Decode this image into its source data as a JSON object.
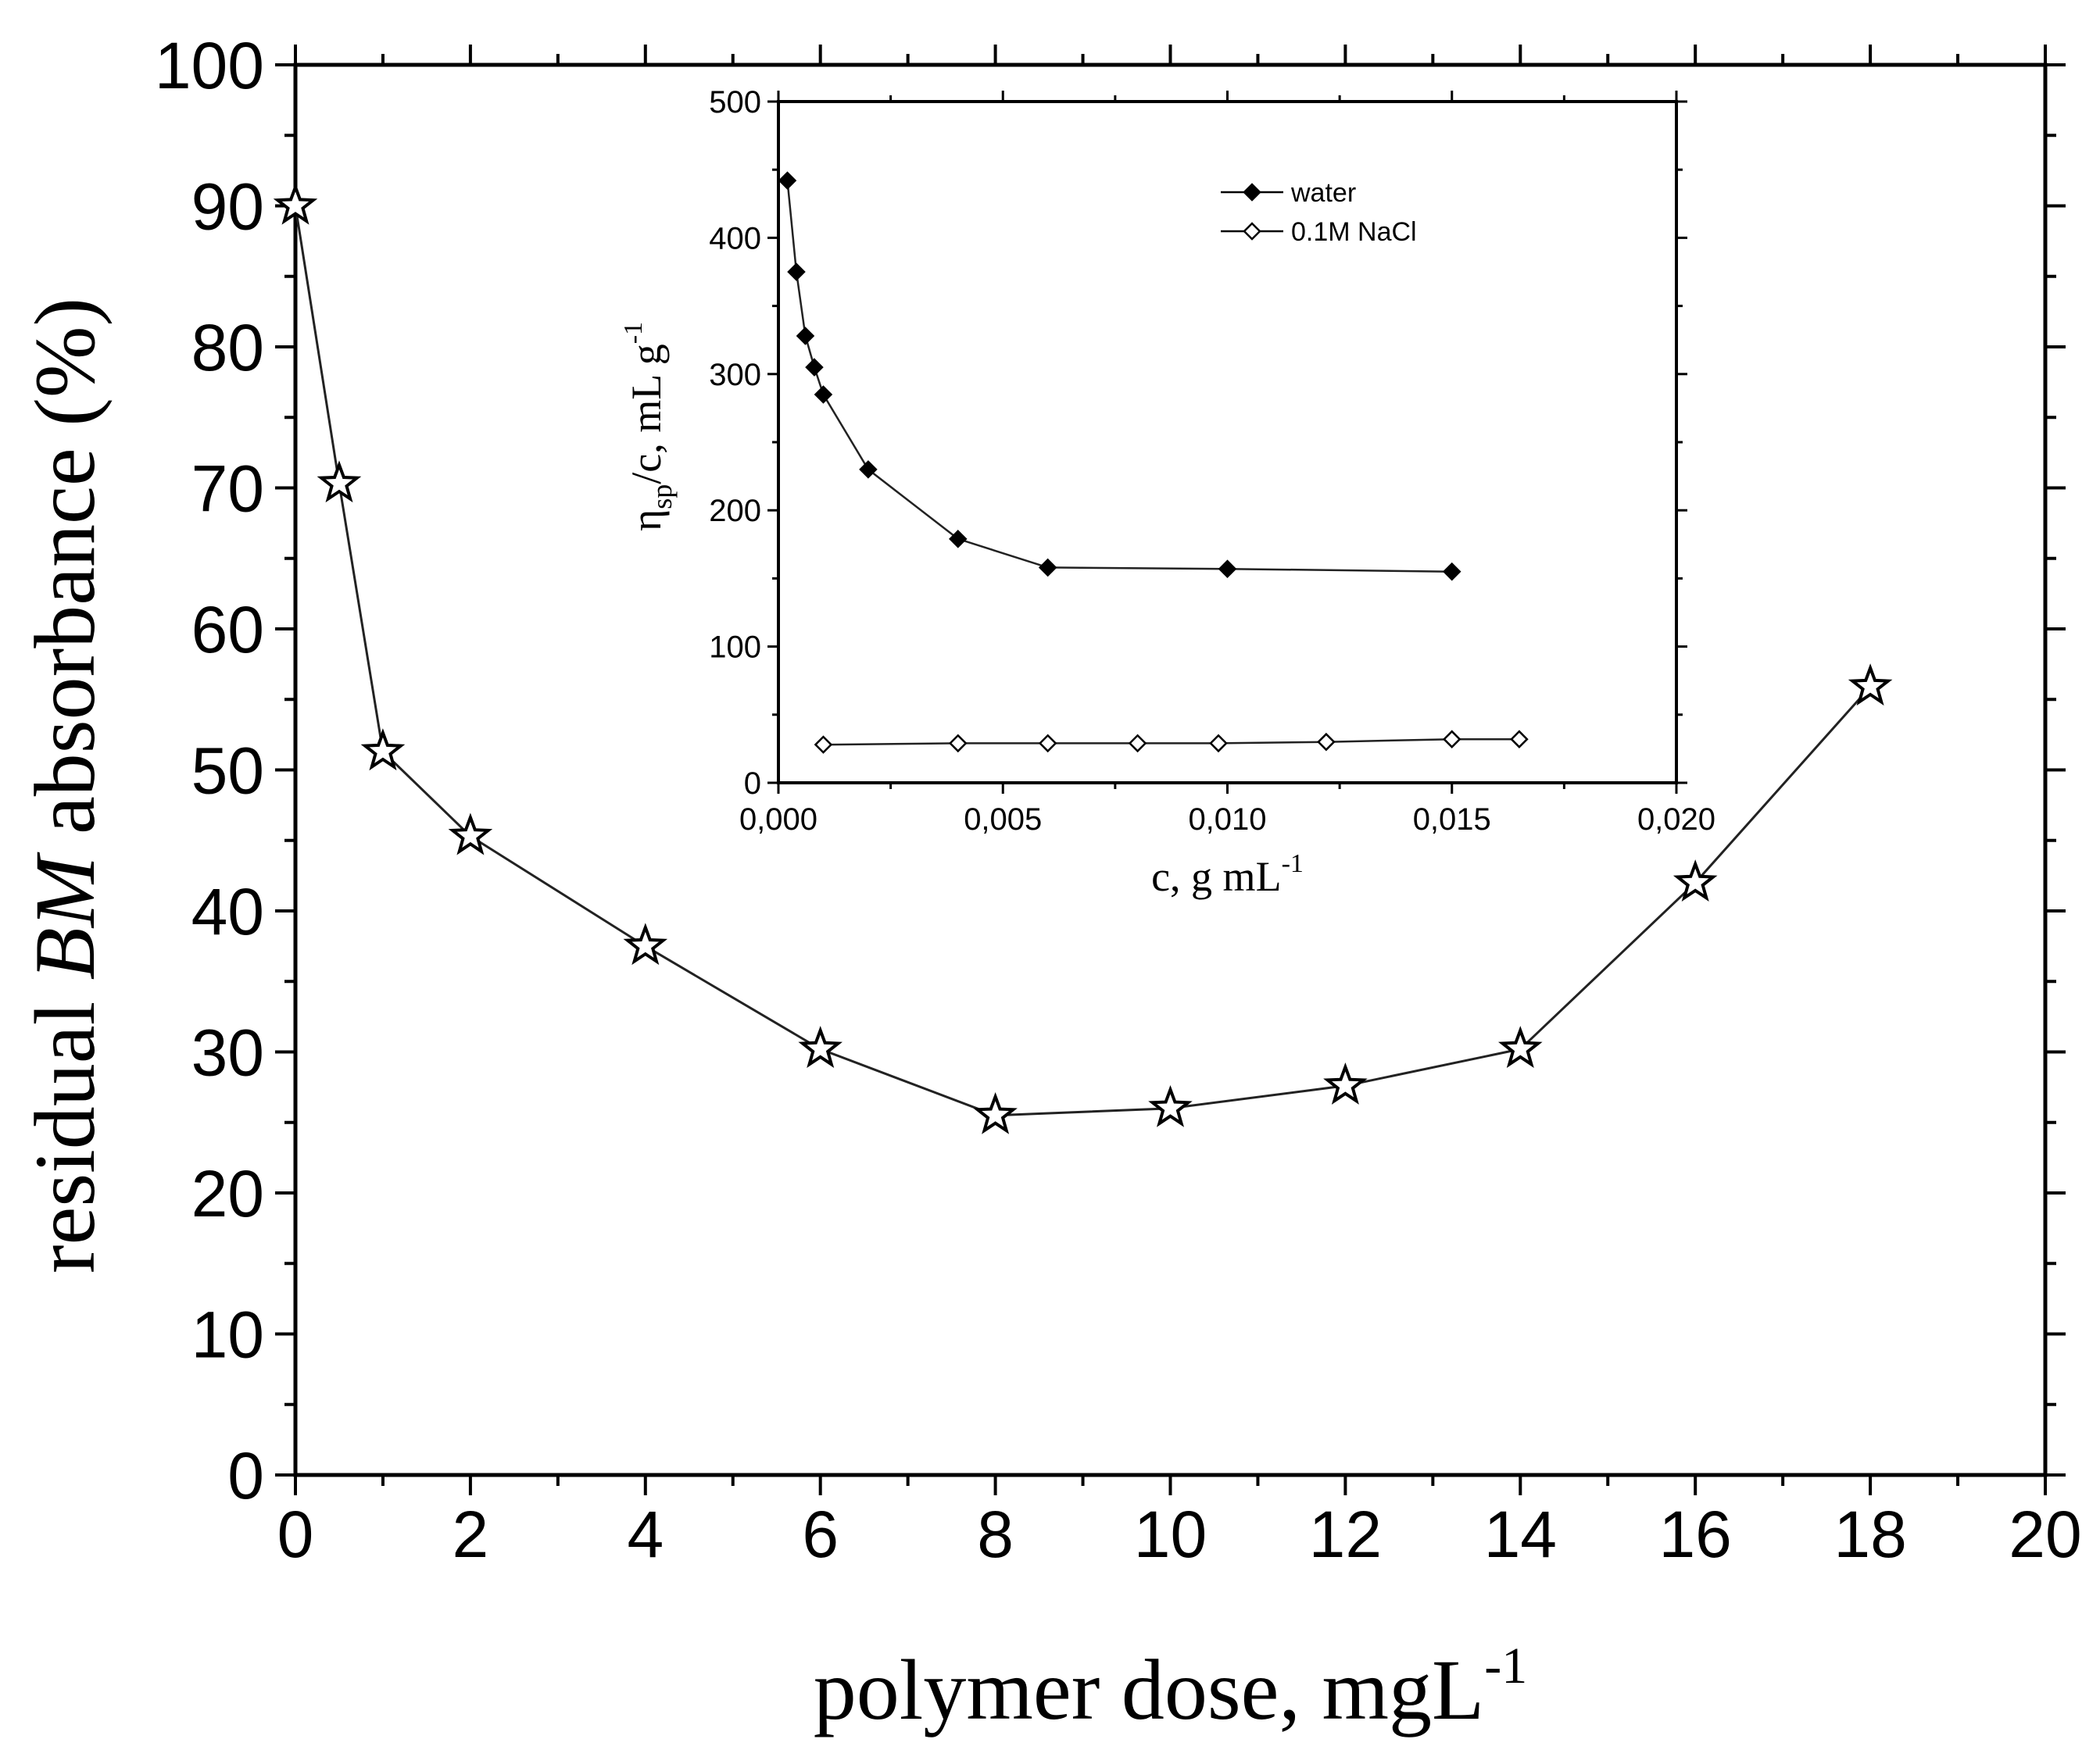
{
  "chart_data": [
    {
      "type": "line",
      "title": "",
      "xlabel": "polymer dose, mgL",
      "xlabel_sup": "-1",
      "ylabel_pre": "residual ",
      "ylabel_italic": "BM",
      "ylabel_post": " absorbance (%)",
      "xlim": [
        0,
        20
      ],
      "ylim": [
        0,
        100
      ],
      "x_ticks": [
        "0",
        "2",
        "4",
        "6",
        "8",
        "10",
        "12",
        "14",
        "16",
        "18",
        "20"
      ],
      "y_ticks": [
        "0",
        "10",
        "20",
        "30",
        "40",
        "50",
        "60",
        "70",
        "80",
        "90",
        "100"
      ],
      "grid": false,
      "marker": "open-star",
      "series": [
        {
          "x": [
            0,
            0.5,
            1,
            2,
            4,
            6,
            8,
            10,
            12,
            14,
            16,
            18
          ],
          "y": [
            90,
            70.3,
            51.3,
            45.3,
            37.5,
            30.2,
            25.5,
            26.0,
            27.6,
            30.2,
            42.0,
            55.9
          ]
        }
      ]
    },
    {
      "type": "line",
      "title": "",
      "xlabel": "c, g mL",
      "xlabel_sup": "-1",
      "ylabel_main": "η",
      "ylabel_sub": "sp",
      "ylabel_rest": "/c, mL g",
      "ylabel_sup": "-1",
      "xlim": [
        0,
        0.02
      ],
      "ylim": [
        0,
        500
      ],
      "x_ticks": [
        "0,000",
        "0,005",
        "0,010",
        "0,015",
        "0,020"
      ],
      "y_ticks": [
        "0",
        "100",
        "200",
        "300",
        "400",
        "500"
      ],
      "legend_position": "top-right",
      "series": [
        {
          "name": "water",
          "marker": "filled-diamond",
          "x": [
            0.0002,
            0.0004,
            0.0006,
            0.0008,
            0.001,
            0.002,
            0.004,
            0.006,
            0.01,
            0.015
          ],
          "y": [
            442,
            375,
            328,
            305,
            285,
            230,
            179,
            158,
            157,
            155
          ]
        },
        {
          "name": "0.1M NaCl",
          "marker": "open-diamond",
          "x": [
            0.001,
            0.004,
            0.006,
            0.008,
            0.0098,
            0.0122,
            0.015,
            0.0165
          ],
          "y": [
            28,
            29,
            29,
            29,
            29,
            30,
            32,
            32
          ]
        }
      ]
    }
  ]
}
